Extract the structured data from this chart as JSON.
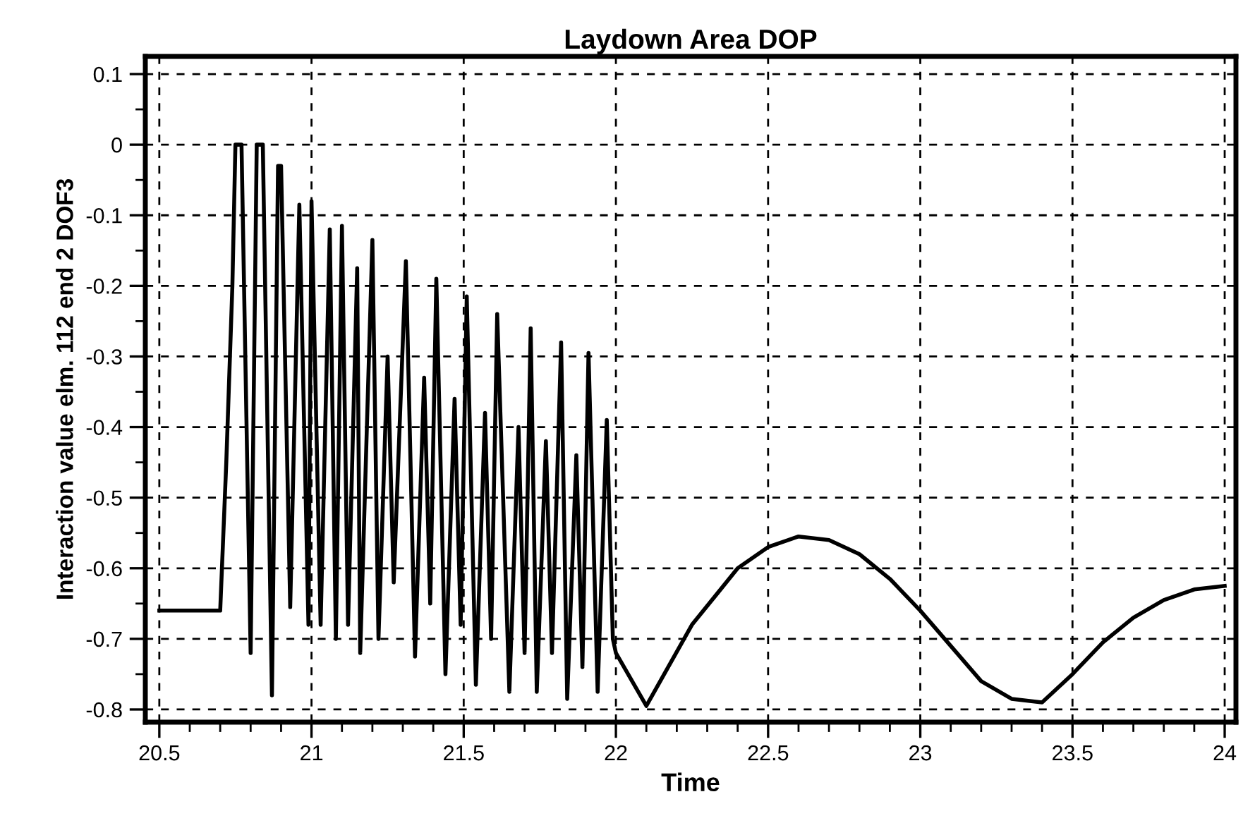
{
  "chart_data": {
    "type": "line",
    "title": "Laydown Area DOP",
    "xlabel": "Time",
    "ylabel": "Interaction value elm. 112 end 2 DOF3",
    "x": [
      20.5,
      20.7,
      20.72,
      20.74,
      20.75,
      20.77,
      20.8,
      20.82,
      20.84,
      20.87,
      20.89,
      20.9,
      20.93,
      20.96,
      20.99,
      21.0,
      21.03,
      21.06,
      21.08,
      21.1,
      21.12,
      21.15,
      21.16,
      21.2,
      21.22,
      21.25,
      21.27,
      21.31,
      21.34,
      21.37,
      21.39,
      21.41,
      21.44,
      21.47,
      21.49,
      21.51,
      21.54,
      21.57,
      21.59,
      21.61,
      21.65,
      21.68,
      21.7,
      21.72,
      21.74,
      21.77,
      21.79,
      21.82,
      21.84,
      21.87,
      21.89,
      21.91,
      21.94,
      21.97,
      21.99,
      22.0,
      22.1,
      22.25,
      22.4,
      22.5,
      22.6,
      22.7,
      22.8,
      22.9,
      23.0,
      23.1,
      23.2,
      23.3,
      23.4,
      23.5,
      23.6,
      23.7,
      23.8,
      23.9,
      24.0
    ],
    "series": [
      {
        "color": "#000000",
        "values": [
          -0.66,
          -0.66,
          -0.45,
          -0.2,
          0.0,
          0.0,
          -0.72,
          0.0,
          0.0,
          -0.78,
          -0.03,
          -0.03,
          -0.655,
          -0.085,
          -0.68,
          -0.08,
          -0.68,
          -0.12,
          -0.7,
          -0.115,
          -0.68,
          -0.175,
          -0.72,
          -0.135,
          -0.7,
          -0.3,
          -0.62,
          -0.165,
          -0.725,
          -0.33,
          -0.65,
          -0.19,
          -0.75,
          -0.36,
          -0.68,
          -0.215,
          -0.765,
          -0.38,
          -0.7,
          -0.24,
          -0.775,
          -0.4,
          -0.72,
          -0.26,
          -0.775,
          -0.42,
          -0.72,
          -0.28,
          -0.785,
          -0.44,
          -0.74,
          -0.295,
          -0.775,
          -0.39,
          -0.7,
          -0.72,
          -0.795,
          -0.68,
          -0.6,
          -0.57,
          -0.555,
          -0.56,
          -0.58,
          -0.615,
          -0.66,
          -0.71,
          -0.76,
          -0.785,
          -0.79,
          -0.75,
          -0.705,
          -0.67,
          -0.645,
          -0.63,
          -0.625
        ]
      }
    ],
    "xlim": [
      20.454,
      24.037
    ],
    "ylim": [
      -0.818,
      0.125
    ],
    "xticks": [
      20.5,
      21,
      21.5,
      22,
      22.5,
      23,
      23.5,
      24
    ],
    "yticks": [
      -0.8,
      -0.7,
      -0.6,
      -0.5,
      -0.4,
      -0.3,
      -0.2,
      -0.1,
      0,
      0.1
    ],
    "grid": true,
    "line_style": "solid",
    "marker": "none"
  }
}
